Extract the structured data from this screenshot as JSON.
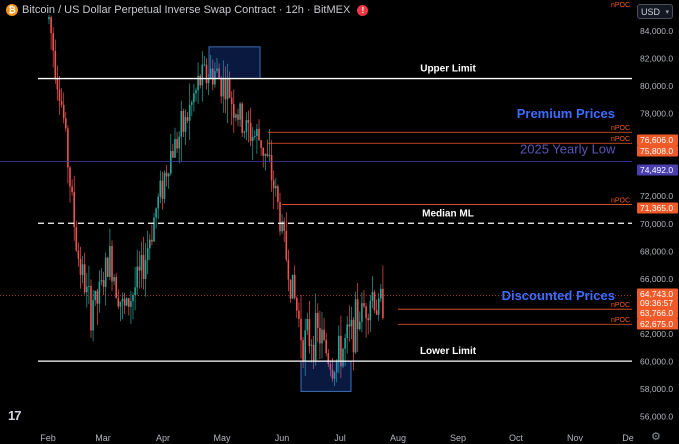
{
  "header": {
    "coin_symbol": "₿",
    "title": "Bitcoin / US Dollar Perpetual Inverse Swap Contract · 12h · BitMEX",
    "alert_symbol": "!"
  },
  "currency_selector": "USD",
  "logo": "17",
  "top_right_label": "nPOC",
  "colors": {
    "background": "#000000",
    "up": "#26a69a",
    "down": "#ef5350",
    "price_axis_text": "#b2b5be",
    "level_line": "#ffffff",
    "npoc": "#f05a28",
    "box_fill": "rgba(41,98,255,0.25)",
    "box_border": "#3d6fb6",
    "premium_text": "#3d6cff",
    "yearly_line": "#3f3fb5",
    "yearly_text": "#5a56b8"
  },
  "chart_data": {
    "type": "candlestick",
    "interval": "12h",
    "x_axis_labels": [
      "Feb",
      "Mar",
      "Apr",
      "May",
      "Jun",
      "Jul",
      "Aug",
      "Sep",
      "Oct",
      "Nov",
      "De"
    ],
    "y_ticks": [
      56000,
      58000,
      60000,
      62000,
      64000,
      66000,
      68000,
      70000,
      72000,
      74000,
      76000,
      78000,
      80000,
      82000,
      84000
    ],
    "ylim": [
      55000,
      86200
    ],
    "close_path": [
      [
        "Feb",
        84800
      ],
      [
        "Feb",
        78000
      ],
      [
        "Feb",
        68000
      ],
      [
        "Feb",
        63500
      ],
      [
        "Mar",
        67000
      ],
      [
        "Mar",
        64000
      ],
      [
        "Mar",
        67500
      ],
      [
        "Mar",
        63500
      ],
      [
        "Apr",
        66500
      ],
      [
        "Apr",
        71000
      ],
      [
        "Apr",
        75000
      ],
      [
        "Apr",
        77000
      ],
      [
        "May",
        80500
      ],
      [
        "May",
        81000
      ],
      [
        "May",
        79500
      ],
      [
        "May",
        77000
      ],
      [
        "Jun",
        76000
      ],
      [
        "Jun",
        72500
      ],
      [
        "Jun",
        66500
      ],
      [
        "Jun",
        61500
      ],
      [
        "Jul",
        62000
      ],
      [
        "Jul",
        59500
      ],
      [
        "Jul",
        61500
      ],
      [
        "Jul",
        63500
      ],
      [
        "Aug",
        65000
      ],
      [
        "Aug",
        63500
      ],
      [
        "Aug",
        64743
      ]
    ],
    "horizontal_levels": [
      {
        "label": "Upper Limit",
        "price": 80500,
        "style": "solid"
      },
      {
        "label": "Median ML",
        "price": 70000,
        "style": "dashed"
      },
      {
        "label": "Lower Limit",
        "price": 60000,
        "style": "solid"
      },
      {
        "label": "2025 Yearly Low",
        "price": 74492,
        "style": "solid"
      }
    ],
    "npoc_levels": [
      {
        "label": "nPOC",
        "price": 76606
      },
      {
        "label": "nPOC",
        "price": 75808
      },
      {
        "label": "nPOC",
        "price": 71365
      },
      {
        "label": "nPOC",
        "price": 63766
      },
      {
        "label": "nPOC",
        "price": 62675
      }
    ],
    "price_tags": [
      {
        "text": "76,606.0",
        "price": 76606,
        "kind": "npoc"
      },
      {
        "text": "75,808.0",
        "price": 75808,
        "kind": "npoc"
      },
      {
        "text": "74,492.0",
        "price": 74492,
        "kind": "yearly"
      },
      {
        "text": "71,365.0",
        "price": 71365,
        "kind": "npoc"
      },
      {
        "text": "64,743.0",
        "price": 64743,
        "kind": "current"
      },
      {
        "text": "09:36:57",
        "price": 64000,
        "kind": "countdown"
      },
      {
        "text": "63,766.0",
        "price": 63766,
        "kind": "npoc"
      },
      {
        "text": "62,675.0",
        "price": 62675,
        "kind": "npoc"
      }
    ],
    "zones": [
      {
        "name": "top-zone",
        "x_from": "May",
        "x_to": "May",
        "y_from": 80500,
        "y_to": 82800
      },
      {
        "name": "bottom-zone",
        "x_from": "Jun",
        "x_to": "Jul",
        "y_from": 57800,
        "y_to": 60000
      }
    ],
    "annotations": [
      {
        "text": "Premium Prices",
        "price": 78000
      },
      {
        "text": "Discounted Prices",
        "price": 64800
      }
    ]
  }
}
